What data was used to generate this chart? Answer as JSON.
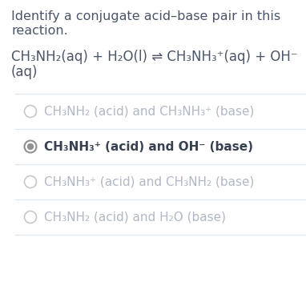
{
  "title_line1": "Identify a conjugate acid–base pair in this",
  "title_line2": "reaction.",
  "eq_line1": "CH₃NH₂(aq) + H₂O(l) ⇌ CH₃NH₃⁺(aq) + OH⁻",
  "eq_line2": "(aq)",
  "options": [
    {
      "text": "CH₃NH₂ (acid) and CH₃NH₃⁺ (base)",
      "selected": false
    },
    {
      "text": "CH₃NH₃⁺ (acid) and OH⁻ (base)",
      "selected": true
    },
    {
      "text": "CH₃NH₃⁺ (acid) and CH₃NH₂ (base)",
      "selected": false
    },
    {
      "text": "CH₃NH₂ (acid) and H₂O (base)",
      "selected": false
    }
  ],
  "bg_color": "#ffffff",
  "text_color_dark": "#4a5568",
  "line_color": "#e2e8f0",
  "radio_selected_outer": "#909090",
  "radio_selected_inner": "#909090",
  "radio_unselected": "#c8c8c8",
  "option_selected_color": "#374151",
  "option_unselected_color": "#b0b8c4",
  "title_fontsize": 11.5,
  "eq_fontsize": 12.0,
  "option_fontsize": 11.0
}
